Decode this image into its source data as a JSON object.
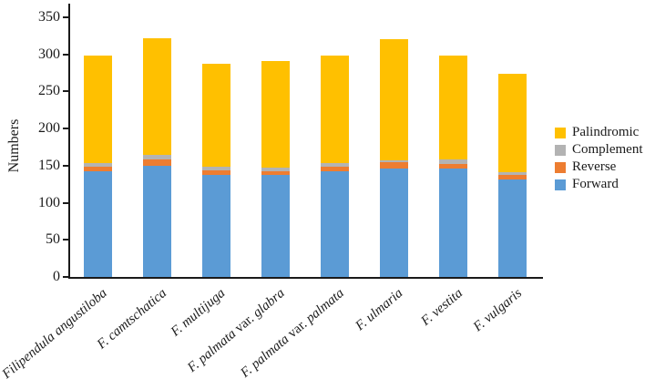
{
  "chart_data": {
    "type": "bar",
    "stacked": true,
    "title": "",
    "xlabel": "",
    "ylabel": "Numbers",
    "ylim": [
      0,
      350
    ],
    "yticks": [
      0,
      50,
      100,
      150,
      200,
      250,
      300,
      350
    ],
    "grid": false,
    "legend_position": "right",
    "categories": [
      "Filipendula angustiloba",
      "F. camtschatica",
      "F. multijuga",
      "F. palmata var. glabra",
      "F. palmata var. palmata",
      "F. ulmaria",
      "F. vestita",
      "F. vulgaris"
    ],
    "series": [
      {
        "name": "Forward",
        "color": "#5B9BD5",
        "values": [
          142,
          150,
          138,
          137,
          142,
          146,
          146,
          131
        ]
      },
      {
        "name": "Reverse",
        "color": "#ED7D31",
        "values": [
          6,
          8,
          6,
          5,
          7,
          9,
          6,
          6
        ]
      },
      {
        "name": "Complement",
        "color": "#B3B3B3",
        "values": [
          5,
          6,
          5,
          5,
          4,
          2,
          6,
          4
        ]
      },
      {
        "name": "Palindromic",
        "color": "#FFC000",
        "values": [
          146,
          158,
          138,
          144,
          146,
          163,
          140,
          133
        ]
      }
    ],
    "totals": [
      299,
      322,
      287,
      291,
      299,
      320,
      298,
      274
    ]
  }
}
